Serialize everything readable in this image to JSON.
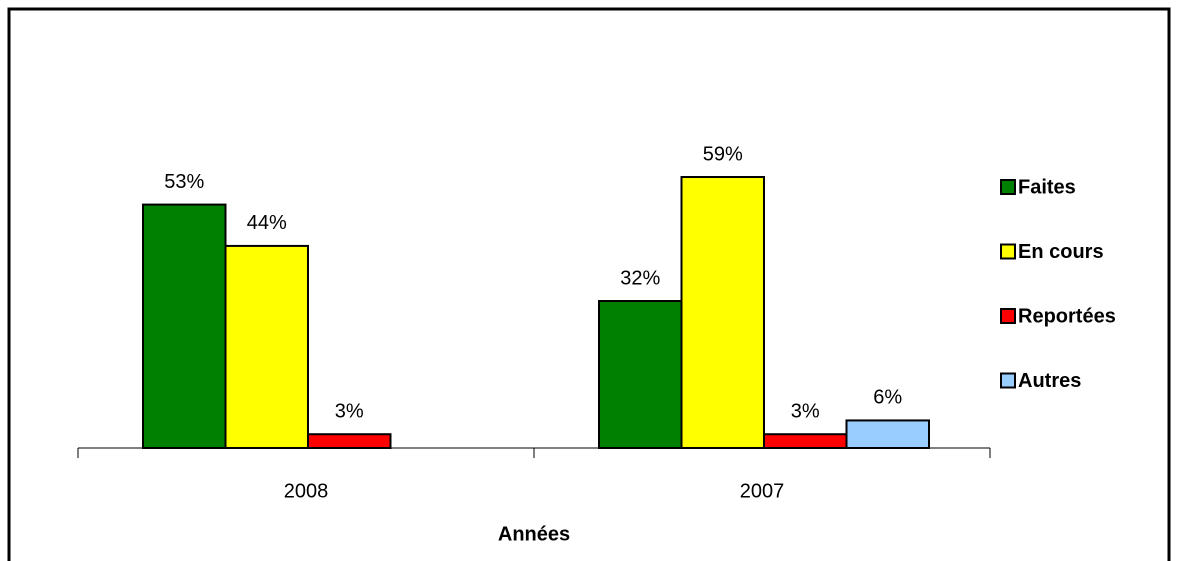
{
  "chart_data": {
    "type": "bar",
    "xlabel": "Années",
    "categories": [
      "2008",
      "2007"
    ],
    "series": [
      {
        "name": "Faites",
        "color": "#008000",
        "values": [
          53,
          32
        ],
        "value_labels": [
          "53%",
          "32%"
        ]
      },
      {
        "name": "En cours",
        "color": "#ffff00",
        "values": [
          44,
          59
        ],
        "value_labels": [
          "44%",
          "59%"
        ]
      },
      {
        "name": "Reportées",
        "color": "#ff0000",
        "values": [
          3,
          3
        ],
        "value_labels": [
          "3%",
          "3%"
        ]
      },
      {
        "name": "Autres",
        "color": "#99ccff",
        "values": [
          null,
          6
        ],
        "value_labels": [
          null,
          "6%"
        ]
      }
    ],
    "ylim": [
      0,
      70
    ],
    "legend": "right"
  }
}
